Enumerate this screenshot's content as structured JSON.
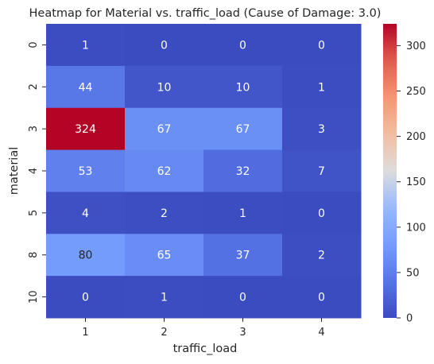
{
  "chart_data": {
    "type": "heatmap",
    "title": "Heatmap for Material vs. traffic_load (Cause of Damage: 3.0)",
    "xlabel": "traffic_load",
    "ylabel": "material",
    "x_categories": [
      "1",
      "2",
      "3",
      "4"
    ],
    "y_categories": [
      "0",
      "2",
      "3",
      "4",
      "5",
      "8",
      "10"
    ],
    "values": [
      [
        1,
        0,
        0,
        0
      ],
      [
        44,
        10,
        10,
        1
      ],
      [
        324,
        67,
        67,
        3
      ],
      [
        53,
        62,
        32,
        7
      ],
      [
        4,
        2,
        1,
        0
      ],
      [
        80,
        65,
        37,
        2
      ],
      [
        0,
        1,
        0,
        0
      ]
    ],
    "colormap": "coolwarm",
    "vmin": 0,
    "vmax": 324,
    "colorbar_ticks": [
      0,
      50,
      100,
      150,
      200,
      250,
      300
    ],
    "annotation_color_dark": "#262626",
    "annotation_color_light": "#ffffff"
  }
}
